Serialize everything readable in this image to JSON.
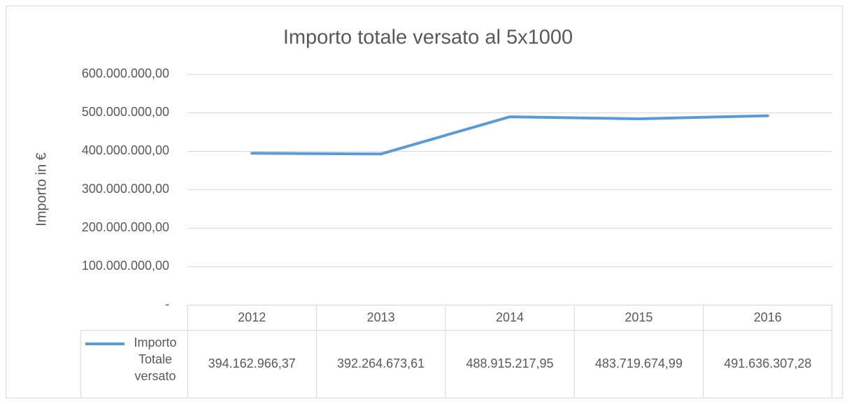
{
  "chart_data": {
    "type": "line",
    "title": "Importo totale versato al 5x1000",
    "y_label": "Importo in €",
    "categories": [
      "2012",
      "2013",
      "2014",
      "2015",
      "2016"
    ],
    "series": [
      {
        "name": "Importo Totale versato",
        "color": "#5b9bd5",
        "values": [
          394162966.37,
          392264673.61,
          488915217.95,
          483719674.99,
          491636307.28
        ],
        "value_labels": [
          "394.162.966,37",
          "392.264.673,61",
          "488.915.217,95",
          "483.719.674,99",
          "491.636.307,28"
        ]
      }
    ],
    "ylim": [
      0,
      600000000
    ],
    "yticks": [
      {
        "value": 0,
        "label": "-"
      },
      {
        "value": 100000000,
        "label": "100.000.000,00"
      },
      {
        "value": 200000000,
        "label": "200.000.000,00"
      },
      {
        "value": 300000000,
        "label": "300.000.000,00"
      },
      {
        "value": 400000000,
        "label": "400.000.000,00"
      },
      {
        "value": 500000000,
        "label": "500.000.000,00"
      },
      {
        "value": 600000000,
        "label": "600.000.000,00"
      }
    ],
    "grid": true
  }
}
